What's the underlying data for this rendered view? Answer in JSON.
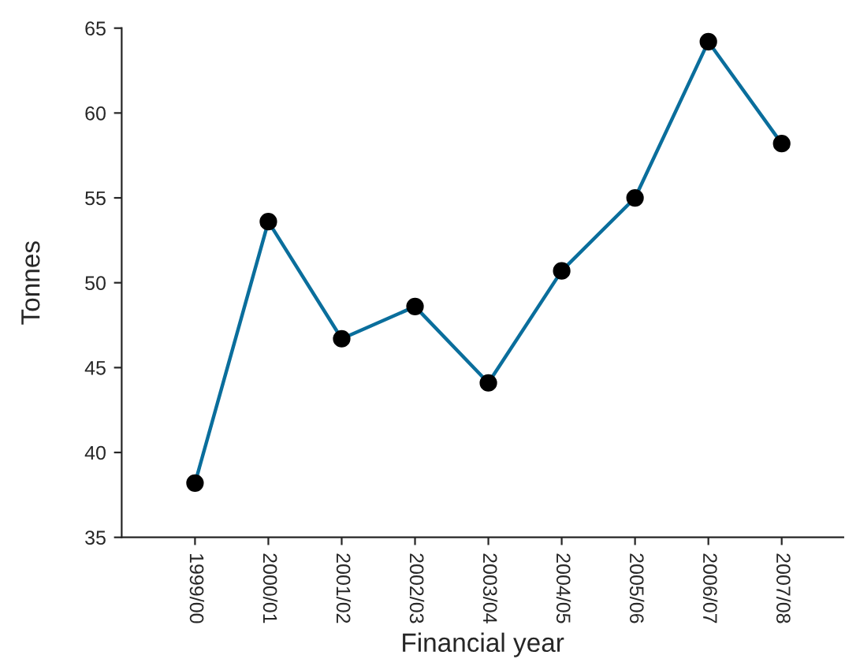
{
  "chart_data": {
    "type": "line",
    "xlabel": "Financial year",
    "ylabel": "Tonnes",
    "categories": [
      "1999/00",
      "2000/01",
      "2001/02",
      "2002/03",
      "2003/04",
      "2004/05",
      "2005/06",
      "2006/07",
      "2007/08"
    ],
    "series": [
      {
        "color": "#0a6e9c",
        "values": [
          38.2,
          53.6,
          46.7,
          48.6,
          44.1,
          50.7,
          55.0,
          64.2,
          58.2
        ]
      }
    ],
    "ylim": [
      35,
      65
    ],
    "yticks": [
      35,
      40,
      45,
      50,
      55,
      60,
      65
    ],
    "grid": false,
    "legend": false,
    "marker": "circle",
    "line_style": "solid"
  }
}
